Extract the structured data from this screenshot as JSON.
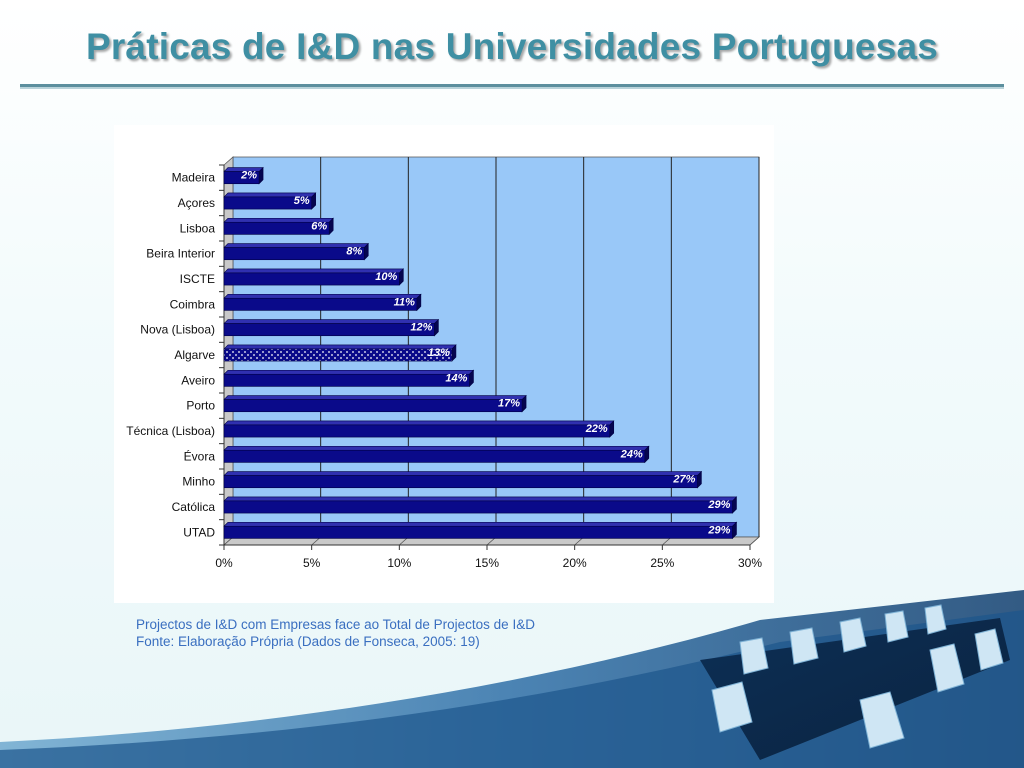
{
  "slide": {
    "title": "Práticas de I&D nas Universidades Portuguesas",
    "caption_line1": "Projectos de I&D com Empresas face ao Total de Projectos de I&D",
    "caption_line2": "Fonte: Elaboração Própria (Dados de Fonseca, 2005: 19)"
  },
  "colors": {
    "title": "#3f8fa3",
    "caption": "#3a6fc0",
    "plot_background": "#99c8f8",
    "bar": "#0a0a8a",
    "highlight_pattern_dots": "#ffffff"
  },
  "chart_data": {
    "type": "bar",
    "orientation": "horizontal",
    "categories": [
      "Madeira",
      "Açores",
      "Lisboa",
      "Beira Interior",
      "ISCTE",
      "Coimbra",
      "Nova (Lisboa)",
      "Algarve",
      "Aveiro",
      "Porto",
      "Técnica (Lisboa)",
      "Évora",
      "Minho",
      "Católica",
      "UTAD"
    ],
    "values": [
      2,
      5,
      6,
      8,
      10,
      11,
      12,
      13,
      14,
      17,
      22,
      24,
      27,
      29,
      29
    ],
    "data_labels": [
      "2%",
      "5%",
      "6%",
      "8%",
      "10%",
      "11%",
      "12%",
      "13%",
      "14%",
      "17%",
      "22%",
      "24%",
      "27%",
      "29%",
      "29%"
    ],
    "highlighted_category": "Algarve",
    "xlim": [
      0,
      30
    ],
    "x_ticks": [
      0,
      5,
      10,
      15,
      20,
      25,
      30
    ],
    "x_tick_labels": [
      "0%",
      "5%",
      "10%",
      "15%",
      "20%",
      "25%",
      "30%"
    ],
    "grid": "vertical",
    "legend": "none",
    "style": "3d"
  }
}
